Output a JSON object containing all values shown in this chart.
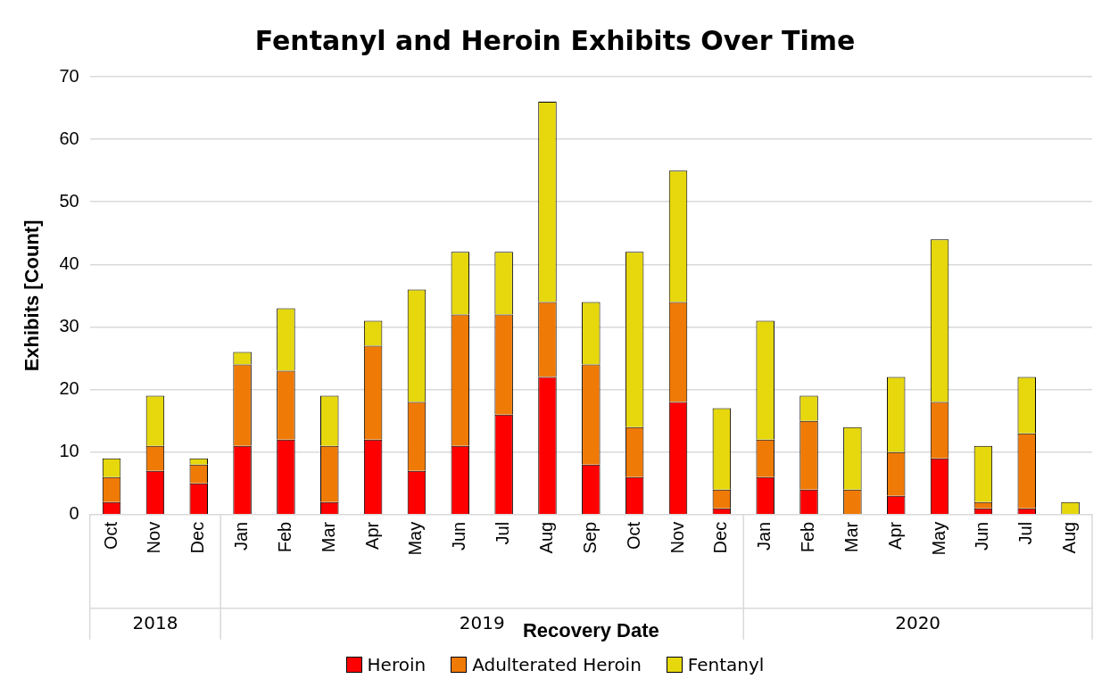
{
  "chart_data": {
    "type": "bar",
    "title": "Fentanyl and Heroin Exhibits Over Time",
    "xlabel": "Recovery Date",
    "ylabel": "Exhibits [Count]",
    "categories": [
      "Oct",
      "Nov",
      "Dec",
      "Jan",
      "Feb",
      "Mar",
      "Apr",
      "May",
      "Jun",
      "Jul",
      "Aug",
      "Sep",
      "Oct",
      "Nov",
      "Dec",
      "Jan",
      "Feb",
      "Mar",
      "Apr",
      "May",
      "Jun",
      "Jul",
      "Aug"
    ],
    "annotations": [
      "2018",
      "2019",
      "2020"
    ],
    "stacked": true,
    "series": [
      {
        "name": "Heroin",
        "color": "#ff0000",
        "values": [
          2,
          7,
          5,
          11,
          12,
          2,
          12,
          7,
          11,
          16,
          22,
          8,
          6,
          18,
          1,
          6,
          4,
          0,
          3,
          9,
          1,
          1,
          0
        ]
      },
      {
        "name": "Adulterated Heroin",
        "color": "#f07a06",
        "values": [
          4,
          4,
          3,
          13,
          11,
          9,
          15,
          11,
          21,
          16,
          12,
          16,
          8,
          16,
          3,
          6,
          11,
          4,
          7,
          9,
          1,
          12,
          0
        ]
      },
      {
        "name": "Fentanyl",
        "color": "#e6d80c",
        "values": [
          3,
          8,
          1,
          2,
          10,
          8,
          4,
          18,
          10,
          10,
          32,
          10,
          28,
          21,
          13,
          19,
          4,
          10,
          12,
          26,
          9,
          9,
          2
        ]
      }
    ],
    "ylim": [
      0,
      70
    ],
    "yticks": [
      0,
      10,
      20,
      30,
      40,
      50,
      60,
      70
    ],
    "grid": "y",
    "legend": "bottom"
  }
}
